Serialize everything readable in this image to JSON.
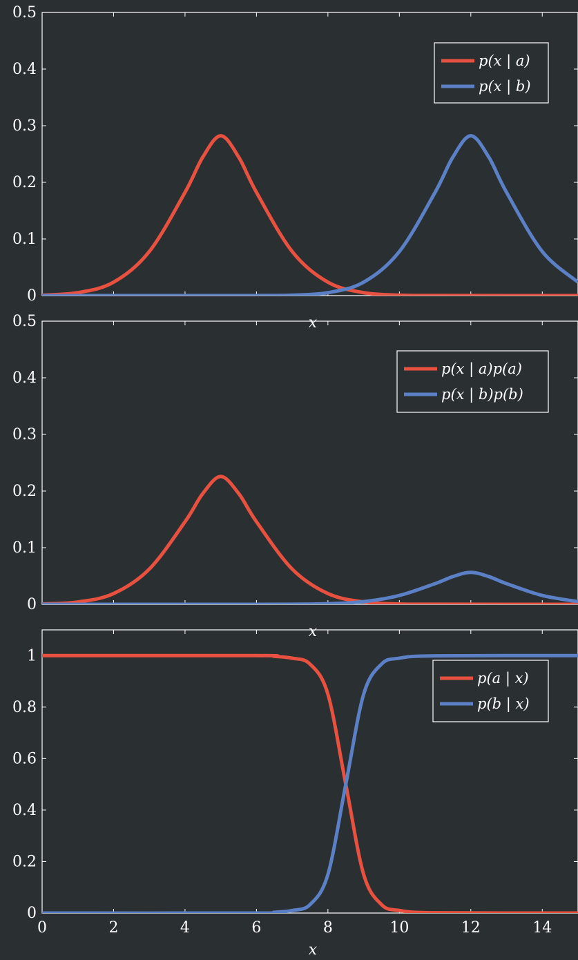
{
  "chart_data": [
    {
      "type": "line",
      "title": "",
      "xlabel": "x",
      "ylabel": "",
      "xlim": [
        0,
        15
      ],
      "ylim": [
        0,
        0.5
      ],
      "yticks": [
        "0",
        "0.1",
        "0.2",
        "0.3",
        "0.4",
        "0.5"
      ],
      "yticks_values": [
        0,
        0.1,
        0.2,
        0.3,
        0.4,
        0.5
      ],
      "legend_position": "top-right",
      "grid": false,
      "series": [
        {
          "name": "p(x | a)",
          "color": "#e8513f",
          "points": [
            [
              0,
              0.0008
            ],
            [
              1,
              0.0052
            ],
            [
              2,
              0.0237
            ],
            [
              3,
              0.0778
            ],
            [
              4,
              0.1823
            ],
            [
              4.5,
              0.2448
            ],
            [
              5,
              0.2821
            ],
            [
              5.5,
              0.2448
            ],
            [
              6,
              0.1823
            ],
            [
              7,
              0.0778
            ],
            [
              8,
              0.0237
            ],
            [
              9,
              0.0052
            ],
            [
              10,
              0.0008
            ],
            [
              11,
              0.0001
            ],
            [
              15,
              0
            ]
          ]
        },
        {
          "name": "p(x | b)",
          "color": "#5b80c6",
          "points": [
            [
              0,
              0
            ],
            [
              5,
              0
            ],
            [
              6,
              0.0001
            ],
            [
              7,
              0.0008
            ],
            [
              8,
              0.0052
            ],
            [
              9,
              0.0237
            ],
            [
              10,
              0.0778
            ],
            [
              11,
              0.1823
            ],
            [
              11.5,
              0.2448
            ],
            [
              12,
              0.2821
            ],
            [
              12.5,
              0.2448
            ],
            [
              13,
              0.1823
            ],
            [
              14,
              0.0778
            ],
            [
              15,
              0.0237
            ]
          ]
        }
      ]
    },
    {
      "type": "line",
      "title": "",
      "xlabel": "x",
      "ylabel": "",
      "xlim": [
        0,
        15
      ],
      "ylim": [
        0,
        0.5
      ],
      "yticks": [
        "0",
        "0.1",
        "0.2",
        "0.3",
        "0.4",
        "0.5"
      ],
      "yticks_values": [
        0,
        0.1,
        0.2,
        0.3,
        0.4,
        0.5
      ],
      "legend_position": "top-right",
      "grid": false,
      "series": [
        {
          "name": "p(x | a)p(a)",
          "color": "#e8513f",
          "points": [
            [
              0,
              0.0006
            ],
            [
              1,
              0.0042
            ],
            [
              2,
              0.019
            ],
            [
              3,
              0.0622
            ],
            [
              4,
              0.1458
            ],
            [
              4.5,
              0.1958
            ],
            [
              5,
              0.2257
            ],
            [
              5.5,
              0.1958
            ],
            [
              6,
              0.1458
            ],
            [
              7,
              0.0622
            ],
            [
              8,
              0.019
            ],
            [
              9,
              0.0042
            ],
            [
              10,
              0.0006
            ],
            [
              11,
              0.0001
            ],
            [
              15,
              0
            ]
          ]
        },
        {
          "name": "p(x | b)p(b)",
          "color": "#5b80c6",
          "points": [
            [
              0,
              0
            ],
            [
              5,
              0
            ],
            [
              6,
              0
            ],
            [
              7,
              0.0002
            ],
            [
              8,
              0.001
            ],
            [
              9,
              0.0047
            ],
            [
              10,
              0.0156
            ],
            [
              11,
              0.0365
            ],
            [
              11.5,
              0.049
            ],
            [
              12,
              0.0564
            ],
            [
              12.5,
              0.049
            ],
            [
              13,
              0.0365
            ],
            [
              14,
              0.0156
            ],
            [
              15,
              0.0047
            ]
          ]
        }
      ]
    },
    {
      "type": "line",
      "title": "",
      "xlabel": "x",
      "ylabel": "",
      "xlim": [
        0,
        15
      ],
      "ylim": [
        0,
        1.1
      ],
      "xticks": [
        "0",
        "2",
        "4",
        "6",
        "8",
        "10",
        "12",
        "14"
      ],
      "xticks_values": [
        0,
        2,
        4,
        6,
        8,
        10,
        12,
        14
      ],
      "yticks": [
        "0",
        "0.2",
        "0.4",
        "0.6",
        "0.8",
        "1"
      ],
      "yticks_values": [
        0,
        0.2,
        0.4,
        0.6,
        0.8,
        1
      ],
      "legend_position": "top-right",
      "grid": false,
      "series": [
        {
          "name": "p(a | x)",
          "color": "#e8513f",
          "points": [
            [
              0,
              1
            ],
            [
              6,
              1
            ],
            [
              6.5,
              0.997
            ],
            [
              7,
              0.99
            ],
            [
              7.5,
              0.967
            ],
            [
              8,
              0.85
            ],
            [
              8.5,
              0.5
            ],
            [
              9,
              0.15
            ],
            [
              9.5,
              0.033
            ],
            [
              10,
              0.01
            ],
            [
              11,
              0.001
            ],
            [
              15,
              0
            ]
          ]
        },
        {
          "name": "p(b | x)",
          "color": "#5b80c6",
          "points": [
            [
              0,
              0
            ],
            [
              6,
              0
            ],
            [
              6.5,
              0.003
            ],
            [
              7,
              0.01
            ],
            [
              7.5,
              0.033
            ],
            [
              8,
              0.15
            ],
            [
              8.5,
              0.5
            ],
            [
              9,
              0.85
            ],
            [
              9.5,
              0.967
            ],
            [
              10,
              0.99
            ],
            [
              11,
              0.999
            ],
            [
              15,
              1
            ]
          ]
        }
      ]
    }
  ]
}
